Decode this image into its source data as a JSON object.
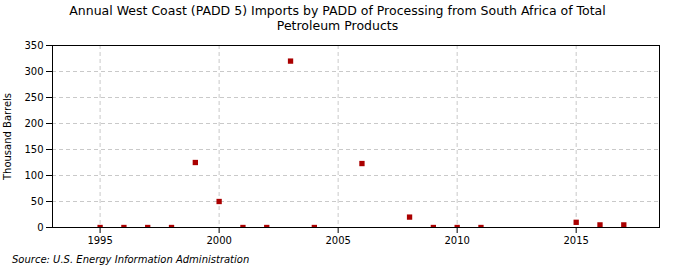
{
  "chart_data": {
    "type": "scatter",
    "title": "Annual West Coast (PADD 5) Imports by PADD of Processing from South Africa of Total\nPetroleum Products",
    "ylabel": "Thousand Barrels",
    "source": "Source: U.S. Energy Information Administration",
    "x": [
      1995,
      1996,
      1997,
      1998,
      1999,
      2000,
      2001,
      2002,
      2003,
      2004,
      2006,
      2008,
      2009,
      2010,
      2011,
      2015,
      2016,
      2017
    ],
    "values": [
      0,
      0,
      0,
      0,
      125,
      50,
      0,
      0,
      320,
      0,
      123,
      20,
      0,
      0,
      0,
      10,
      5,
      5
    ],
    "color": "#aa0000",
    "marker": "square",
    "xlim": [
      1993,
      2018.5
    ],
    "xticks": [
      1995,
      2000,
      2005,
      2010,
      2015
    ],
    "ylim": [
      0,
      350
    ],
    "yticks": [
      0,
      50,
      100,
      150,
      200,
      250,
      300,
      350
    ],
    "grid": true
  }
}
